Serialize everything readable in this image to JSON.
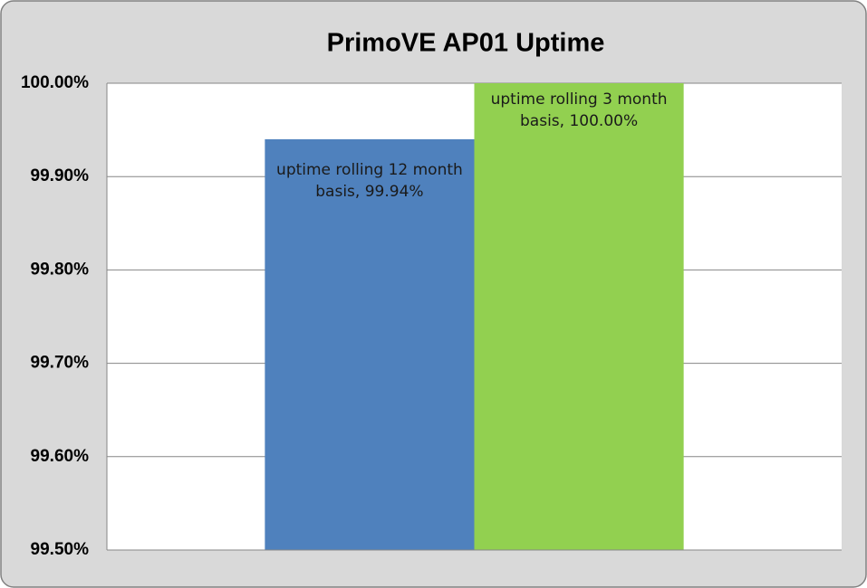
{
  "chart_data": {
    "type": "bar",
    "title": "PrimoVE AP01 Uptime",
    "categories": [
      null
    ],
    "series": [
      {
        "name": "uptime rolling 12 month basis",
        "color": "#4f81bd",
        "values": [
          99.94
        ],
        "value_labels": [
          "99.94%"
        ]
      },
      {
        "name": "uptime rolling 3 month basis",
        "color": "#92d050",
        "values": [
          100.0
        ],
        "value_labels": [
          "100.00%"
        ]
      }
    ],
    "ylim": [
      99.5,
      100.0
    ],
    "yticks": [
      {
        "value": 99.5,
        "label": "99.50%"
      },
      {
        "value": 99.6,
        "label": "99.60%"
      },
      {
        "value": 99.7,
        "label": "99.70%"
      },
      {
        "value": 99.8,
        "label": "99.80%"
      },
      {
        "value": 99.9,
        "label": "99.90%"
      },
      {
        "value": 100.0,
        "label": "100.00%"
      }
    ],
    "grid": true
  }
}
